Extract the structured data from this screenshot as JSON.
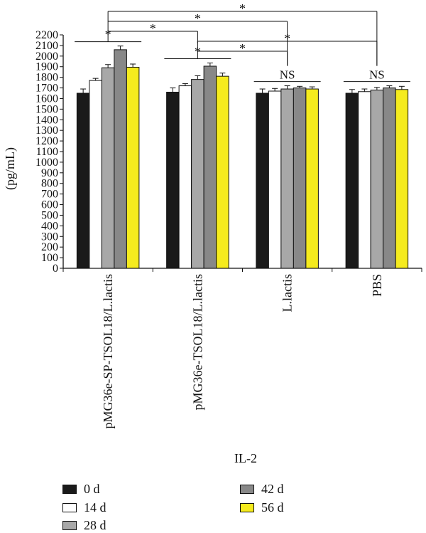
{
  "chart_data": {
    "type": "bar",
    "title": "IL-2",
    "xlabel": "",
    "ylabel": "(pg/mL)",
    "ylim": [
      0,
      2200
    ],
    "ytick_step": 100,
    "grid": false,
    "legend_position": "bottom",
    "categories": [
      "pMG36e-SP-TSOL18/L.lactis",
      "pMG36e-TSOL18/L.lactis",
      "L.lactis",
      "PBS"
    ],
    "series": [
      {
        "name": "0 d",
        "color": "#1a1a1a",
        "values": [
          1650,
          1660,
          1650,
          1650
        ],
        "errors": [
          40,
          40,
          40,
          35
        ]
      },
      {
        "name": "14 d",
        "color": "#ffffff",
        "values": [
          1770,
          1720,
          1670,
          1665
        ],
        "errors": [
          20,
          20,
          25,
          25
        ]
      },
      {
        "name": "28 d",
        "color": "#a8a8a8",
        "values": [
          1890,
          1780,
          1690,
          1680
        ],
        "errors": [
          30,
          35,
          30,
          25
        ]
      },
      {
        "name": "42 d",
        "color": "#888888",
        "values": [
          2060,
          1905,
          1700,
          1700
        ],
        "errors": [
          35,
          30,
          15,
          20
        ]
      },
      {
        "name": "56 d",
        "color": "#f5eb1e",
        "values": [
          1895,
          1810,
          1690,
          1685
        ],
        "errors": [
          30,
          30,
          20,
          30
        ]
      }
    ],
    "annotations": {
      "within_group": [
        "*",
        "*",
        "NS",
        "NS"
      ],
      "between_groups": [
        {
          "from": 0,
          "to": 3,
          "label": "*"
        },
        {
          "from": 0,
          "to": 2,
          "label": "*"
        },
        {
          "from": 0,
          "to": 1,
          "label": "*"
        },
        {
          "from": 1,
          "to": 3,
          "label": "*"
        },
        {
          "from": 1,
          "to": 2,
          "label": "*"
        }
      ]
    }
  }
}
